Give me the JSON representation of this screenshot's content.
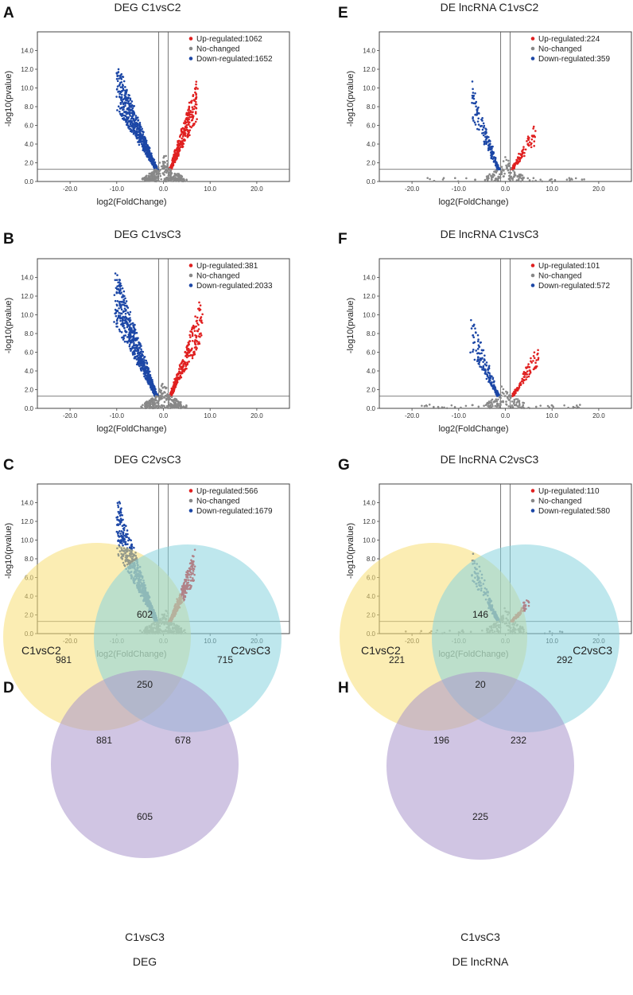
{
  "colors": {
    "up": "#e02020",
    "no": "#888888",
    "down": "#1c47a6",
    "venn_c1vsc2": "#f7df74",
    "venn_c2vsc3": "#88d3df",
    "venn_c1vsc3": "#a996cc"
  },
  "chart_data": [
    {
      "type": "scatter",
      "panel": "A",
      "title": "DEG C1vsC2",
      "xlabel": "log2(FoldChange)",
      "ylabel": "-log10(pvalue)",
      "xlim": [
        -27,
        27
      ],
      "ylim": [
        0,
        16
      ],
      "xticks": [
        "-20.0",
        "-10.0",
        "0.0",
        "10.0",
        "20.0"
      ],
      "yticks": [
        "0.0",
        "2.0",
        "4.0",
        "6.0",
        "8.0",
        "10.0",
        "12.0",
        "14.0"
      ],
      "fc_threshold": 1,
      "p_threshold": 1.3,
      "legend": [
        {
          "key": "up",
          "label": "Up-regulated:1062"
        },
        {
          "key": "no",
          "label": "No-changed"
        },
        {
          "key": "down",
          "label": "Down-regulated:1652"
        }
      ],
      "series_shape": {
        "down_max_y": 12.7,
        "down_tip_x": -9.6,
        "up_max_y": 11.1,
        "up_tip_x": 7.0,
        "no_x_range": [
          -5,
          5
        ]
      }
    },
    {
      "type": "scatter",
      "panel": "B",
      "title": "DEG C1vsC3",
      "xlabel": "log2(FoldChange)",
      "ylabel": "-log10(pvalue)",
      "xlim": [
        -27,
        27
      ],
      "ylim": [
        0,
        16
      ],
      "xticks": [
        "-20.0",
        "-10.0",
        "0.0",
        "10.0",
        "20.0"
      ],
      "yticks": [
        "0.0",
        "2.0",
        "4.0",
        "6.0",
        "8.0",
        "10.0",
        "12.0",
        "14.0"
      ],
      "fc_threshold": 1,
      "p_threshold": 1.3,
      "legend": [
        {
          "key": "up",
          "label": "Up-regulated:381"
        },
        {
          "key": "no",
          "label": "No-changed"
        },
        {
          "key": "down",
          "label": "Down-regulated:2033"
        }
      ],
      "series_shape": {
        "down_max_y": 15.2,
        "down_tip_x": -10.0,
        "up_max_y": 12.0,
        "up_tip_x": 8.0,
        "no_x_range": [
          -5,
          5
        ]
      }
    },
    {
      "type": "scatter",
      "panel": "C",
      "title": "DEG C2vsC3",
      "xlabel": "log2(FoldChange)",
      "ylabel": "-log10(pvalue)",
      "xlim": [
        -27,
        27
      ],
      "ylim": [
        0,
        16
      ],
      "xticks": [
        "-20.0",
        "-10.0",
        "0.0",
        "10.0",
        "20.0"
      ],
      "yticks": [
        "0.0",
        "2.0",
        "4.0",
        "6.0",
        "8.0",
        "10.0",
        "12.0",
        "14.0"
      ],
      "fc_threshold": 1,
      "p_threshold": 1.3,
      "legend": [
        {
          "key": "up",
          "label": "Up-regulated:566"
        },
        {
          "key": "no",
          "label": "No-changed"
        },
        {
          "key": "down",
          "label": "Down-regulated:1679"
        }
      ],
      "series_shape": {
        "down_max_y": 14.5,
        "down_tip_x": -9.6,
        "up_max_y": 9.0,
        "up_tip_x": 6.5,
        "no_x_range": [
          -5,
          5
        ]
      }
    },
    {
      "type": "scatter",
      "panel": "E",
      "title": "DE lncRNA C1vsC2",
      "xlabel": "log2(FoldChange)",
      "ylabel": "-log10(pvalue)",
      "xlim": [
        -27,
        27
      ],
      "ylim": [
        0,
        16
      ],
      "xticks": [
        "-20.0",
        "-10.0",
        "0.0",
        "10.0",
        "20.0"
      ],
      "yticks": [
        "0.0",
        "2.0",
        "4.0",
        "6.0",
        "8.0",
        "10.0",
        "12.0",
        "14.0"
      ],
      "fc_threshold": 1,
      "p_threshold": 1.3,
      "legend": [
        {
          "key": "up",
          "label": "Up-regulated:224"
        },
        {
          "key": "no",
          "label": "No-changed"
        },
        {
          "key": "down",
          "label": "Down-regulated:359"
        }
      ],
      "series_shape": {
        "down_max_y": 11.1,
        "down_tip_x": -7.0,
        "up_max_y": 6.1,
        "up_tip_x": 6.0,
        "no_x_range": [
          -18,
          17
        ]
      }
    },
    {
      "type": "scatter",
      "panel": "F",
      "title": "DE lncRNA C1vsC3",
      "xlabel": "log2(FoldChange)",
      "ylabel": "-log10(pvalue)",
      "xlim": [
        -27,
        27
      ],
      "ylim": [
        0,
        16
      ],
      "xticks": [
        "-20.0",
        "-10.0",
        "0.0",
        "10.0",
        "20.0"
      ],
      "yticks": [
        "0.0",
        "2.0",
        "4.0",
        "6.0",
        "8.0",
        "10.0",
        "12.0",
        "14.0"
      ],
      "fc_threshold": 1,
      "p_threshold": 1.3,
      "legend": [
        {
          "key": "up",
          "label": "Up-regulated:101"
        },
        {
          "key": "no",
          "label": "No-changed"
        },
        {
          "key": "down",
          "label": "Down-regulated:572"
        }
      ],
      "series_shape": {
        "down_max_y": 9.7,
        "down_tip_x": -7.0,
        "up_max_y": 7.3,
        "up_tip_x": 7.0,
        "no_x_range": [
          -18,
          16
        ]
      }
    },
    {
      "type": "scatter",
      "panel": "G",
      "title": "DE lncRNA C2vsC3",
      "xlabel": "log2(FoldChange)",
      "ylabel": "-log10(pvalue)",
      "xlim": [
        -27,
        27
      ],
      "ylim": [
        0,
        16
      ],
      "xticks": [
        "-20.0",
        "-10.0",
        "0.0",
        "10.0",
        "20.0"
      ],
      "yticks": [
        "0.0",
        "2.0",
        "4.0",
        "6.0",
        "8.0",
        "10.0",
        "12.0",
        "14.0"
      ],
      "fc_threshold": 1,
      "p_threshold": 1.3,
      "legend": [
        {
          "key": "up",
          "label": "Up-regulated:110"
        },
        {
          "key": "no",
          "label": "No-changed"
        },
        {
          "key": "down",
          "label": "Down-regulated:580"
        }
      ],
      "series_shape": {
        "down_max_y": 9.3,
        "down_tip_x": -7.0,
        "up_max_y": 4.2,
        "up_tip_x": 5.0,
        "no_x_range": [
          -23,
          15
        ]
      }
    }
  ],
  "venns": [
    {
      "panel": "D",
      "caption": "DEG",
      "sets": [
        "C1vsC2",
        "C2vsC3",
        "C1vsC3"
      ],
      "values": {
        "only_a": "981",
        "a_b": "602",
        "only_b": "715",
        "all": "250",
        "a_c": "881",
        "b_c": "678",
        "only_c": "605"
      }
    },
    {
      "panel": "H",
      "caption": "DE lncRNA",
      "sets": [
        "C1vsC2",
        "C2vsC3",
        "C1vsC3"
      ],
      "values": {
        "only_a": "221",
        "a_b": "146",
        "only_b": "292",
        "all": "20",
        "a_c": "196",
        "b_c": "232",
        "only_c": "225"
      }
    }
  ]
}
